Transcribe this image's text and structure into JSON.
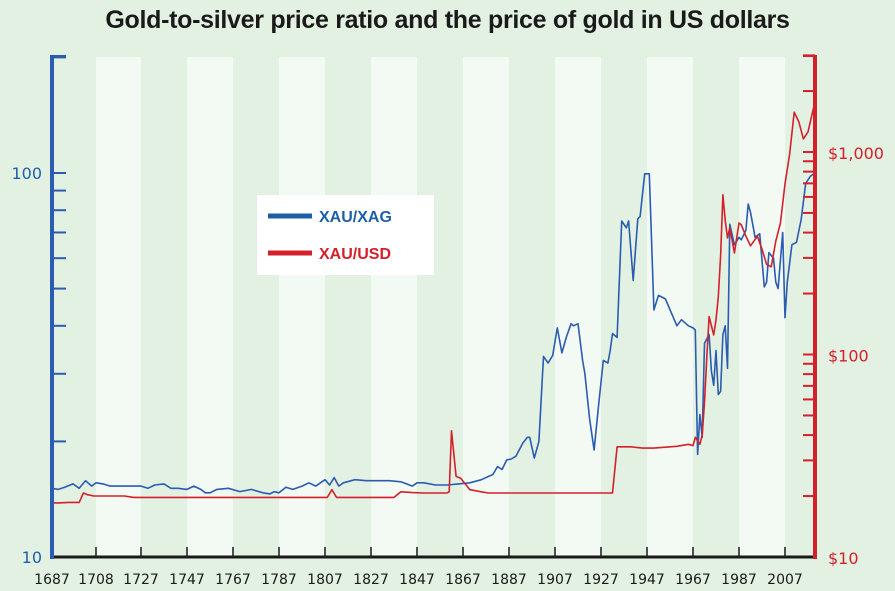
{
  "chart_data": {
    "type": "line",
    "title": "Gold-to-silver price ratio and the price of gold in US dollars",
    "xlabel": "",
    "ylabel_left": "",
    "ylabel_right": "",
    "x_ticks": [
      "1687",
      "1708",
      "1727",
      "1747",
      "1767",
      "1787",
      "1807",
      "1827",
      "1847",
      "1867",
      "1887",
      "1907",
      "1927",
      "1947",
      "1967",
      "1987",
      "2007"
    ],
    "xlim": [
      1687,
      2020
    ],
    "left_axis": {
      "scale": "log",
      "range": [
        10,
        200
      ],
      "tick_labels": [
        "10",
        "100"
      ],
      "color": "#2356a8"
    },
    "right_axis": {
      "scale": "log",
      "range": [
        10,
        3000
      ],
      "tick_labels": [
        "$10",
        "$100",
        "$1,000"
      ],
      "color": "#d4202a"
    },
    "legend": {
      "placement": "upper-left-center",
      "entries": [
        "XAU/XAG",
        "XAU/USD"
      ]
    },
    "background_bands": true,
    "series": [
      {
        "name": "XAU/XAG",
        "axis": "left",
        "color": "#2356a8",
        "x": [
          1687,
          1690,
          1693,
          1697,
          1700,
          1703,
          1706,
          1708,
          1711,
          1714,
          1720,
          1727,
          1730,
          1733,
          1737,
          1740,
          1743,
          1747,
          1750,
          1753,
          1755,
          1757,
          1760,
          1765,
          1770,
          1775,
          1780,
          1783,
          1785,
          1787,
          1790,
          1793,
          1797,
          1800,
          1803,
          1805,
          1807,
          1809,
          1811,
          1813,
          1815,
          1820,
          1825,
          1830,
          1835,
          1840,
          1845,
          1847,
          1850,
          1855,
          1860,
          1865,
          1870,
          1875,
          1878,
          1880,
          1882,
          1884,
          1886,
          1888,
          1890,
          1893,
          1895,
          1896,
          1898,
          1900,
          1902,
          1904,
          1906,
          1908,
          1910,
          1912,
          1914,
          1915,
          1917,
          1919,
          1920,
          1922,
          1924,
          1926,
          1928,
          1930,
          1931,
          1932,
          1934,
          1936,
          1938,
          1939,
          1941,
          1943,
          1944,
          1946,
          1948,
          1950,
          1952,
          1955,
          1960,
          1962,
          1965,
          1967,
          1968,
          1969,
          1970,
          1971,
          1972,
          1974,
          1975,
          1976,
          1977,
          1978,
          1979,
          1980,
          1981,
          1982,
          1983,
          1985,
          1987,
          1988,
          1990,
          1991,
          1992,
          1994,
          1996,
          1998,
          1999,
          2000,
          2002,
          2003,
          2004,
          2006,
          2007,
          2008,
          2010,
          2012,
          2014,
          2016,
          2018,
          2020
        ],
        "values": [
          15.1,
          15.0,
          15.2,
          15.5,
          15.1,
          15.8,
          15.3,
          15.6,
          15.5,
          15.3,
          15.3,
          15.3,
          15.1,
          15.4,
          15.5,
          15.1,
          15.1,
          15.0,
          15.3,
          15.0,
          14.7,
          14.7,
          15.0,
          15.1,
          14.8,
          15.0,
          14.7,
          14.6,
          14.8,
          14.7,
          15.2,
          15.0,
          15.3,
          15.6,
          15.3,
          15.6,
          15.9,
          15.4,
          16.1,
          15.3,
          15.6,
          15.9,
          15.8,
          15.8,
          15.8,
          15.7,
          15.3,
          15.6,
          15.6,
          15.4,
          15.4,
          15.5,
          15.6,
          15.9,
          16.2,
          16.4,
          17.2,
          16.9,
          17.9,
          18.0,
          18.3,
          19.8,
          20.5,
          20.5,
          18.1,
          20.0,
          33.3,
          32.0,
          33.5,
          39.5,
          34.0,
          37.5,
          40.5,
          40.0,
          40.5,
          32.5,
          30.0,
          23.0,
          19.0,
          25.0,
          32.5,
          32.0,
          34.5,
          38.2,
          37.3,
          75.0,
          72.0,
          75.0,
          52.5,
          76.0,
          77.0,
          99.5,
          99.5,
          44.0,
          48.0,
          47.0,
          40.0,
          41.5,
          40.0,
          39.5,
          39.0,
          18.5,
          23.5,
          20.5,
          36.0,
          38.0,
          30.5,
          28.0,
          34.5,
          26.5,
          27.0,
          38.0,
          40.0,
          31.0,
          73.5,
          65.0,
          68.0,
          67.0,
          71.0,
          83.0,
          79.0,
          68.0,
          69.5,
          50.5,
          52.0,
          62.0,
          60.0,
          52.0,
          50.0,
          70.0,
          42.0,
          52.0,
          65.0,
          66.0,
          75.5,
          94.0,
          98.0,
          100.0
        ]
      },
      {
        "name": "XAU/USD",
        "axis": "right",
        "color": "#d4202a",
        "x": [
          1687,
          1690,
          1695,
          1700,
          1702,
          1704,
          1707,
          1710,
          1715,
          1720,
          1724,
          1727,
          1740,
          1750,
          1760,
          1770,
          1780,
          1790,
          1800,
          1805,
          1808,
          1810,
          1812,
          1815,
          1820,
          1830,
          1833,
          1837,
          1840,
          1845,
          1850,
          1860,
          1861,
          1862,
          1864,
          1866,
          1870,
          1875,
          1878,
          1880,
          1885,
          1890,
          1900,
          1910,
          1920,
          1932,
          1934,
          1940,
          1945,
          1950,
          1960,
          1965,
          1967,
          1968,
          1970,
          1971,
          1972,
          1973,
          1974,
          1976,
          1977,
          1978,
          1979,
          1980,
          1981,
          1982,
          1983,
          1985,
          1987,
          1988,
          1990,
          1992,
          1995,
          1997,
          1999,
          2001,
          2003,
          2005,
          2007,
          2009,
          2011,
          2013,
          2015,
          2017,
          2020
        ],
        "values": [
          18.5,
          18.5,
          18.6,
          18.6,
          20.7,
          20.3,
          20.0,
          20.0,
          20.0,
          20.0,
          19.7,
          19.7,
          19.7,
          19.7,
          19.7,
          19.7,
          19.7,
          19.7,
          19.7,
          19.7,
          19.7,
          21.5,
          19.7,
          19.7,
          19.7,
          19.7,
          19.7,
          19.7,
          21.0,
          20.8,
          20.7,
          20.7,
          21.0,
          42.0,
          25.0,
          24.5,
          21.5,
          21.0,
          20.7,
          20.7,
          20.7,
          20.7,
          20.7,
          20.7,
          20.7,
          20.7,
          35.0,
          35.0,
          34.5,
          34.5,
          35.2,
          36.0,
          35.5,
          39.0,
          36.0,
          40.0,
          58.0,
          97.0,
          154.0,
          125.0,
          148.0,
          193.0,
          307.0,
          615.0,
          460.0,
          376.0,
          424.0,
          317.0,
          446.0,
          437.0,
          384.0,
          344.0,
          384.0,
          331.0,
          279.0,
          271.0,
          363.0,
          445.0,
          696.0,
          972.0,
          1572.0,
          1411.0,
          1160.0,
          1257.0,
          1770.0
        ]
      }
    ]
  }
}
